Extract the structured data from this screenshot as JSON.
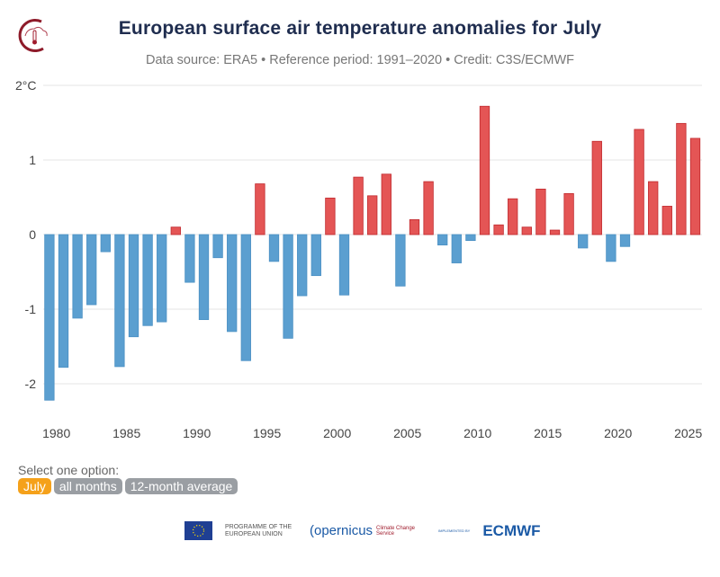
{
  "header": {
    "title": "European surface air temperature anomalies for July",
    "subtitle": "Data source: ERA5 • Reference period: 1991–2020 • Credit: C3S/ECMWF"
  },
  "controls": {
    "label": "Select one option:",
    "options": [
      {
        "label": "July",
        "active": true
      },
      {
        "label": "all months",
        "active": false
      },
      {
        "label": "12-month average",
        "active": false
      }
    ],
    "active_color": "#f5a11a",
    "inactive_color": "#9a9ea3"
  },
  "footer": {
    "eu": "PROGRAMME OF THE EUROPEAN UNION",
    "copernicus": "opernicus",
    "c3s": "Climate Change Service",
    "implemented": "IMPLEMENTED BY",
    "ecmwf": "ECMWF"
  },
  "chart_data": {
    "type": "bar",
    "title": "European surface air temperature anomalies for July",
    "ylabel": "",
    "y_unit_label": "2°C",
    "ylim": [
      -2.4,
      2
    ],
    "yticks": [
      {
        "v": 2,
        "label": "2°C"
      },
      {
        "v": 1,
        "label": "1"
      },
      {
        "v": 0,
        "label": "0"
      },
      {
        "v": -1,
        "label": "-1"
      },
      {
        "v": -2,
        "label": "-2"
      }
    ],
    "xticks": [
      1980,
      1985,
      1990,
      1995,
      2000,
      2005,
      2010,
      2015,
      2020,
      2025
    ],
    "grid": true,
    "positive_color": "#e45555",
    "negative_color": "#5b9fd0",
    "years": [
      1979,
      1980,
      1981,
      1982,
      1983,
      1984,
      1985,
      1986,
      1987,
      1988,
      1989,
      1990,
      1991,
      1992,
      1993,
      1994,
      1995,
      1996,
      1997,
      1998,
      1999,
      2000,
      2001,
      2002,
      2003,
      2004,
      2005,
      2006,
      2007,
      2008,
      2009,
      2010,
      2011,
      2012,
      2013,
      2014,
      2015,
      2016,
      2017,
      2018,
      2019,
      2020,
      2021,
      2022,
      2023,
      2024,
      2025
    ],
    "values": [
      -2.22,
      -1.78,
      -1.12,
      -0.94,
      -0.23,
      -1.77,
      -1.37,
      -1.22,
      -1.17,
      0.1,
      -0.64,
      -1.14,
      -0.31,
      -1.3,
      -1.69,
      0.68,
      -0.36,
      -1.39,
      -0.82,
      -0.55,
      0.49,
      -0.81,
      0.77,
      0.52,
      0.81,
      -0.69,
      0.2,
      0.71,
      -0.14,
      -0.38,
      -0.08,
      1.72,
      0.13,
      0.48,
      0.1,
      0.61,
      0.06,
      0.55,
      -0.18,
      1.25,
      -0.36,
      -0.16,
      1.41,
      0.71,
      0.38,
      1.49,
      1.29
    ]
  }
}
